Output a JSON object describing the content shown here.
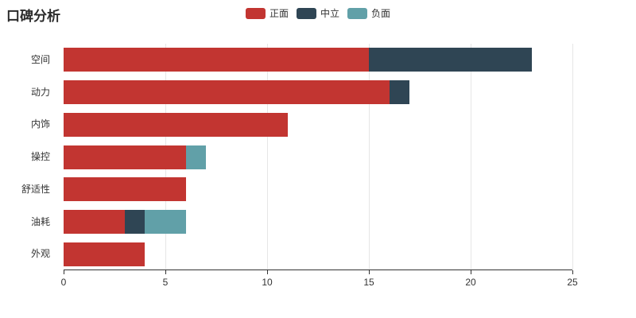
{
  "title": "口碑分析",
  "legend": [
    {
      "label": "正面",
      "color": "#c23531"
    },
    {
      "label": "中立",
      "color": "#2f4554"
    },
    {
      "label": "负面",
      "color": "#61a0a8"
    }
  ],
  "chart_data": {
    "type": "bar",
    "orientation": "horizontal",
    "stacked": true,
    "title": "口碑分析",
    "categories": [
      "空间",
      "动力",
      "内饰",
      "操控",
      "舒适性",
      "油耗",
      "外观"
    ],
    "series": [
      {
        "name": "正面",
        "color": "#c23531",
        "values": [
          15,
          16,
          11,
          6,
          6,
          3,
          4
        ]
      },
      {
        "name": "中立",
        "color": "#2f4554",
        "values": [
          8,
          1,
          0,
          0,
          0,
          1,
          0
        ]
      },
      {
        "name": "负面",
        "color": "#61a0a8",
        "values": [
          0,
          0,
          0,
          1,
          0,
          2,
          0
        ]
      }
    ],
    "xlim": [
      0,
      25
    ],
    "xticks": [
      0,
      5,
      10,
      15,
      20,
      25
    ],
    "xlabel": "",
    "ylabel": "",
    "grid": true,
    "legend_position": "top-center"
  }
}
